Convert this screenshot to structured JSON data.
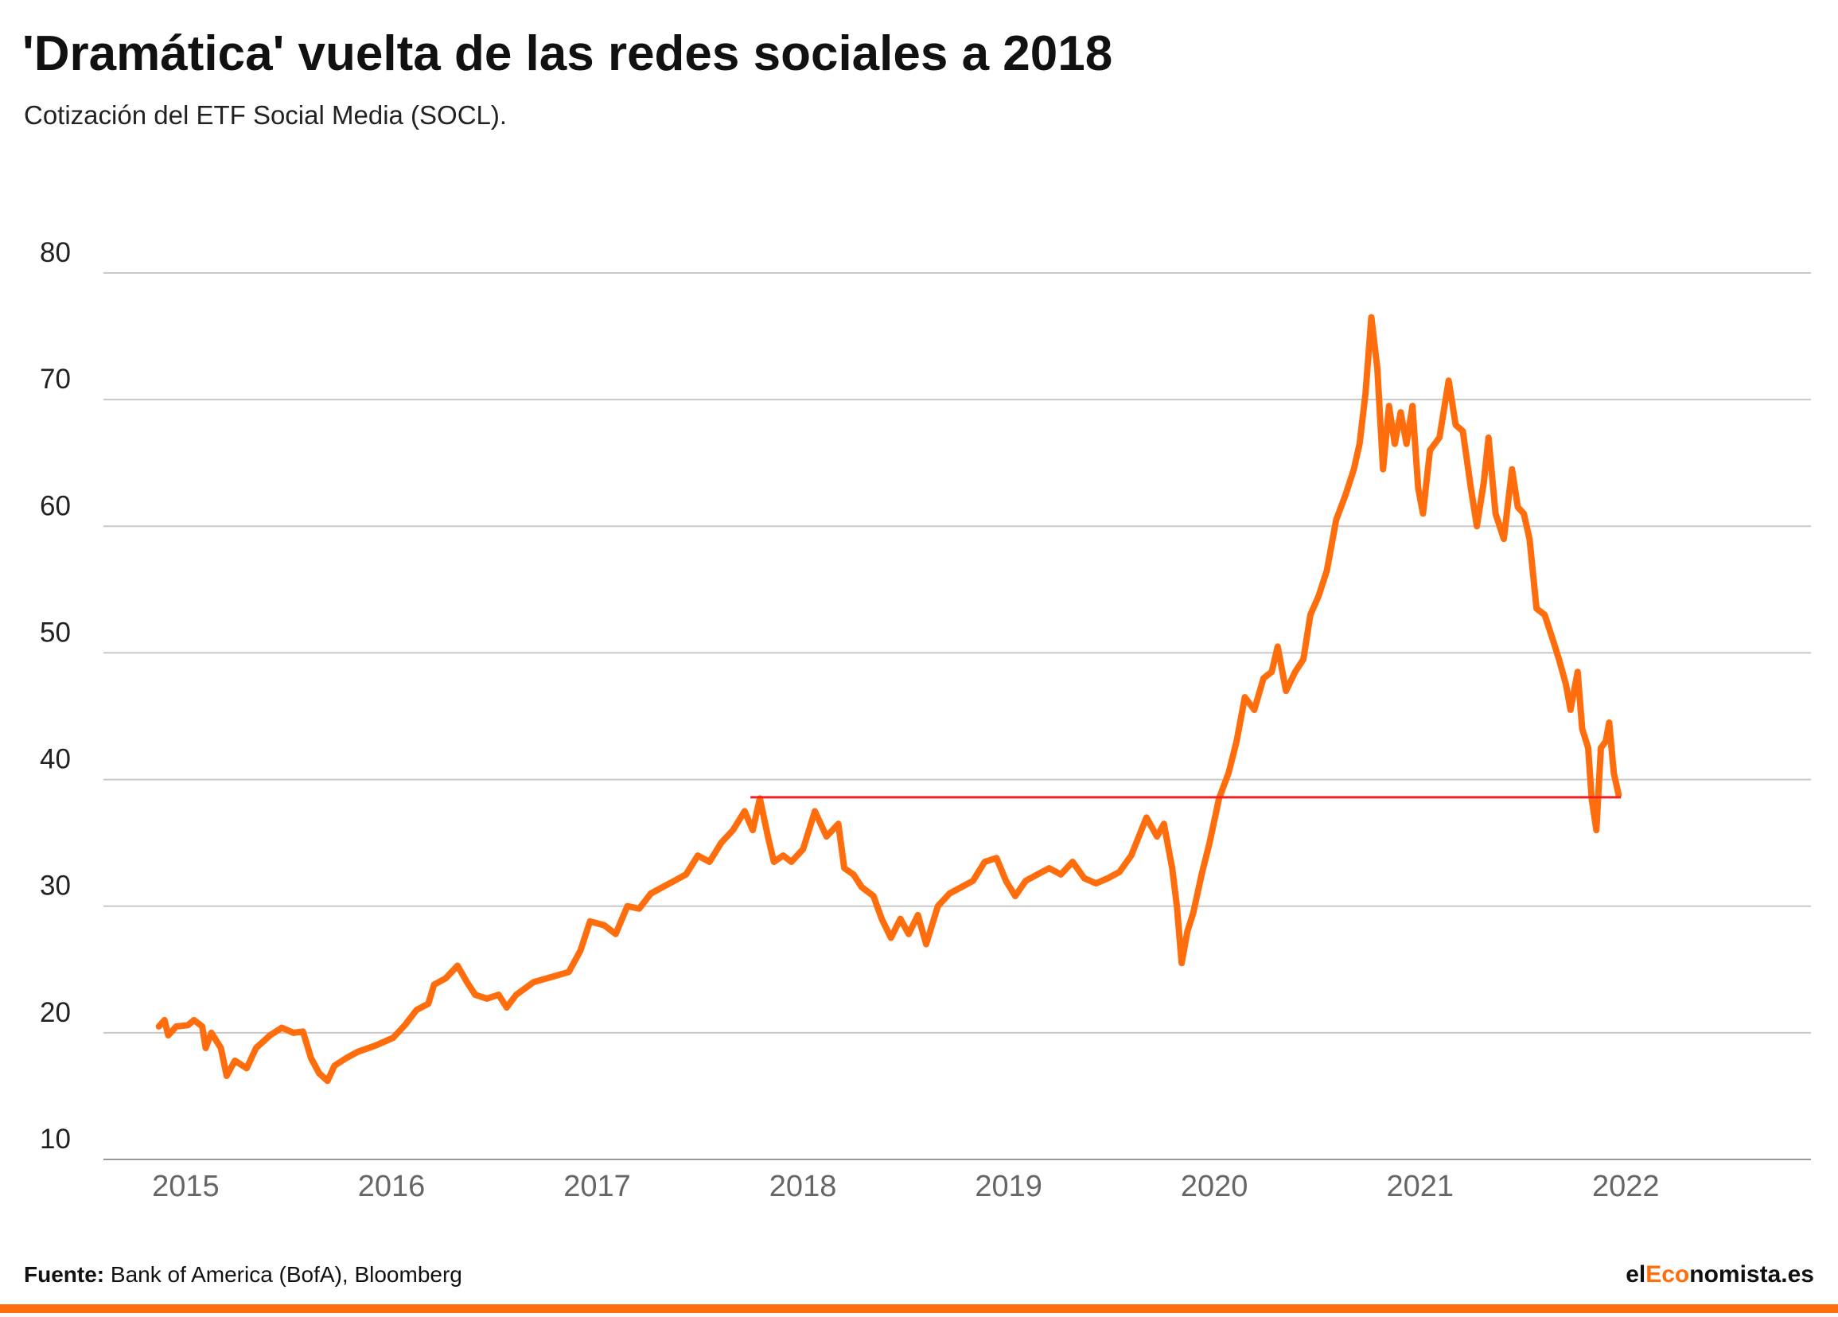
{
  "chart_data": {
    "type": "line",
    "title": "'Dramática' vuelta de las redes sociales a 2018",
    "subtitle": "Cotización del ETF Social Media (SOCL).",
    "xlim": [
      2014.6,
      2022.9
    ],
    "xticks": [
      2015,
      2016,
      2017,
      2018,
      2019,
      2020,
      2021,
      2022
    ],
    "ylim": [
      10,
      80
    ],
    "yticks": [
      10,
      20,
      30,
      40,
      50,
      60,
      70,
      80
    ],
    "grid": true,
    "series": [
      {
        "color": "#ff6d0c",
        "x": [
          2014.869,
          2014.897,
          2014.915,
          2014.954,
          2015.011,
          2015.04,
          2015.08,
          2015.097,
          2015.125,
          2015.171,
          2015.199,
          2015.239,
          2015.296,
          2015.342,
          2015.41,
          2015.467,
          2015.524,
          2015.57,
          2015.609,
          2015.649,
          2015.689,
          2015.723,
          2015.78,
          2015.837,
          2015.923,
          2016.008,
          2016.065,
          2016.122,
          2016.179,
          2016.207,
          2016.264,
          2016.321,
          2016.367,
          2016.407,
          2016.464,
          2016.521,
          2016.56,
          2016.606,
          2016.691,
          2016.777,
          2016.862,
          2016.919,
          2016.965,
          2017.033,
          2017.09,
          2017.147,
          2017.204,
          2017.261,
          2017.318,
          2017.375,
          2017.432,
          2017.489,
          2017.546,
          2017.603,
          2017.66,
          2017.717,
          2017.756,
          2017.791,
          2017.83,
          2017.859,
          2017.904,
          2017.944,
          2018.001,
          2018.058,
          2018.115,
          2018.172,
          2018.201,
          2018.246,
          2018.286,
          2018.343,
          2018.383,
          2018.428,
          2018.474,
          2018.514,
          2018.559,
          2018.599,
          2018.656,
          2018.713,
          2018.77,
          2018.827,
          2018.884,
          2018.941,
          2018.987,
          2019.032,
          2019.083,
          2019.14,
          2019.197,
          2019.254,
          2019.311,
          2019.368,
          2019.425,
          2019.482,
          2019.539,
          2019.596,
          2019.67,
          2019.721,
          2019.755,
          2019.795,
          2019.818,
          2019.841,
          2019.869,
          2019.898,
          2019.938,
          2019.977,
          2020.023,
          2020.069,
          2020.108,
          2020.148,
          2020.194,
          2020.239,
          2020.279,
          2020.308,
          2020.348,
          2020.393,
          2020.433,
          2020.467,
          2020.507,
          2020.547,
          2020.592,
          2020.638,
          2020.678,
          2020.706,
          2020.735,
          2020.763,
          2020.792,
          2020.82,
          2020.849,
          2020.877,
          2020.906,
          2020.934,
          2020.963,
          2020.991,
          2021.014,
          2021.048,
          2021.094,
          2021.139,
          2021.173,
          2021.208,
          2021.247,
          2021.276,
          2021.31,
          2021.333,
          2021.367,
          2021.407,
          2021.447,
          2021.475,
          2021.504,
          2021.532,
          2021.566,
          2021.606,
          2021.646,
          2021.675,
          2021.709,
          2021.731,
          2021.766,
          2021.788,
          2021.817,
          2021.834,
          2021.857,
          2021.879,
          2021.902,
          2021.919,
          2021.942,
          2021.965
        ],
        "values": [
          20.5,
          21.0,
          19.8,
          20.5,
          20.6,
          21.0,
          20.5,
          18.8,
          20.0,
          18.8,
          16.6,
          17.8,
          17.2,
          18.8,
          19.8,
          20.4,
          20.0,
          20.1,
          18.0,
          16.8,
          16.2,
          17.4,
          18.0,
          18.5,
          19.0,
          19.6,
          20.6,
          21.8,
          22.3,
          23.8,
          24.3,
          25.3,
          24.0,
          23.0,
          22.7,
          23.0,
          22.0,
          23.0,
          24.0,
          24.4,
          24.8,
          26.5,
          28.8,
          28.5,
          27.8,
          30.0,
          29.8,
          31.0,
          31.5,
          32.0,
          32.5,
          34.0,
          33.5,
          35.0,
          36.0,
          37.5,
          36.0,
          38.5,
          35.5,
          33.5,
          34.0,
          33.5,
          34.5,
          37.5,
          35.5,
          36.5,
          33.0,
          32.5,
          31.5,
          30.8,
          29.0,
          27.5,
          29.0,
          27.8,
          29.3,
          27.0,
          30.0,
          31.0,
          31.5,
          32.0,
          33.5,
          33.8,
          32.0,
          30.8,
          32.0,
          32.5,
          33.0,
          32.5,
          33.5,
          32.2,
          31.8,
          32.2,
          32.7,
          34.0,
          37.0,
          35.5,
          36.5,
          33.0,
          30.0,
          25.5,
          28.0,
          29.5,
          32.5,
          35.0,
          38.5,
          40.5,
          43.0,
          46.5,
          45.5,
          48.0,
          48.5,
          50.5,
          47.0,
          48.5,
          49.5,
          53.0,
          54.5,
          56.5,
          60.5,
          62.5,
          64.5,
          66.5,
          70.5,
          76.5,
          72.5,
          64.5,
          69.5,
          66.5,
          69.0,
          66.5,
          69.5,
          63.0,
          61.0,
          66.0,
          67.0,
          71.5,
          68.0,
          67.5,
          63.0,
          60.0,
          63.5,
          67.0,
          61.0,
          59.0,
          64.5,
          61.5,
          61.0,
          59.0,
          53.5,
          53.0,
          51.0,
          49.5,
          47.5,
          45.5,
          48.5,
          44.0,
          42.5,
          38.5,
          36.0,
          42.5,
          43.0,
          44.5,
          40.5,
          38.8
        ]
      }
    ],
    "reference_line": {
      "value": 38.6,
      "x": [
        2017.745,
        2021.976
      ],
      "color": "#f22121"
    }
  },
  "footer": {
    "source_label": "Fuente:",
    "source": "Bank of America (BofA), Bloomberg",
    "brand": {
      "pre": "el",
      "accent": "Eco",
      "post": "nomista.es"
    }
  }
}
